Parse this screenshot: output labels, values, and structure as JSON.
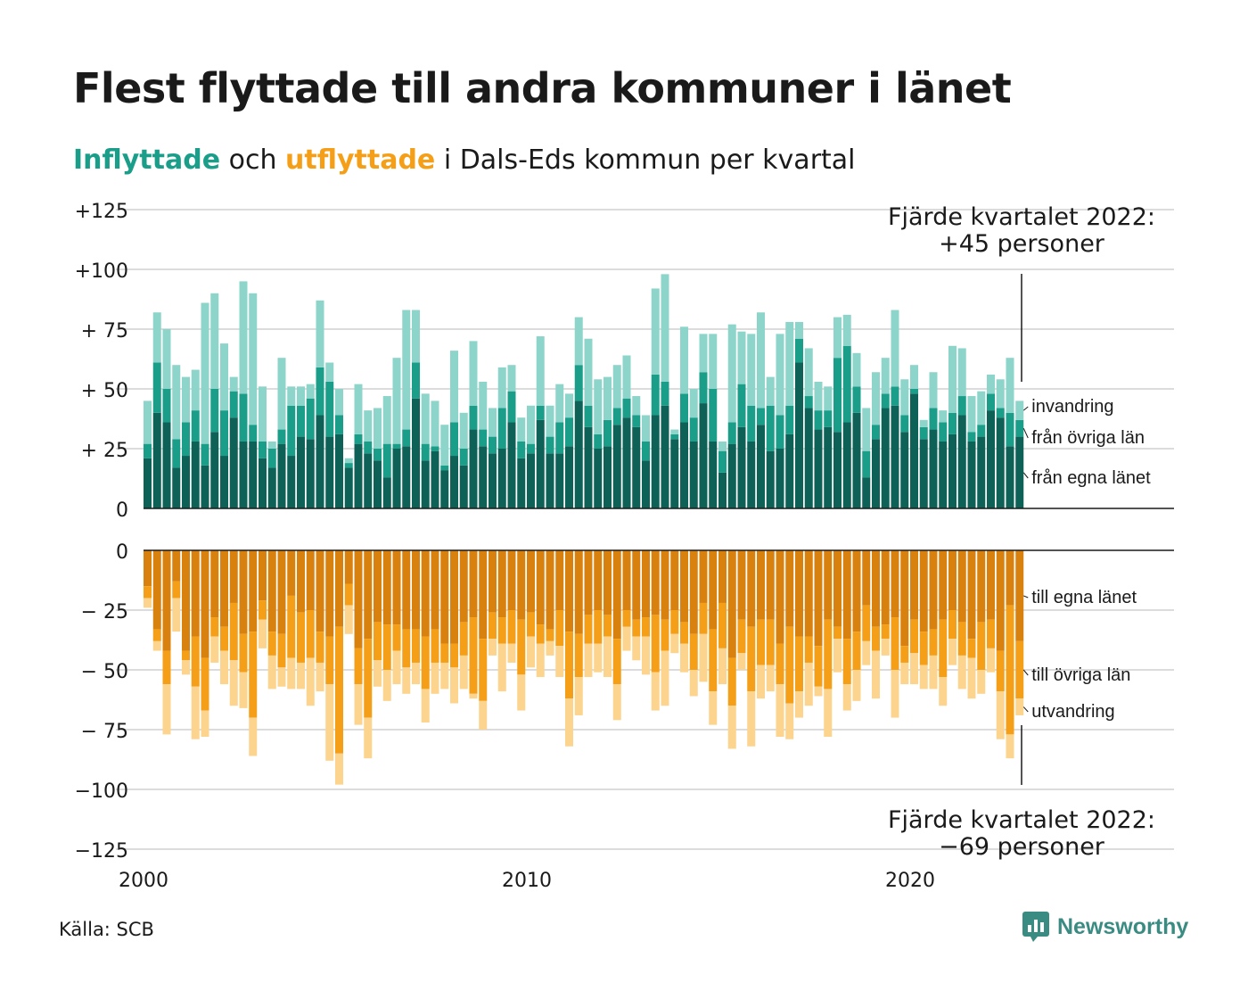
{
  "title": "Flest flyttade till andra kommuner i länet",
  "subtitle": {
    "in_word": "Inflyttade",
    "and_word": "och",
    "out_word": "utflyttade",
    "rest": "i Dals-Eds kommun per kvartal"
  },
  "colors": {
    "in_own": "#0d6156",
    "in_other": "#1a9e8a",
    "in_immigration": "#8dd5ca",
    "out_own": "#d9810e",
    "out_other": "#f49f17",
    "out_emigration": "#fcd48e",
    "grid": "#dcdcdc",
    "in_accent": "#1a9e8a",
    "out_accent": "#f49f17"
  },
  "annotations": {
    "top_line1": "Fjärde kvartalet 2022:",
    "top_line2": "+45 personer",
    "bottom_line1": "Fjärde kvartalet 2022:",
    "bottom_line2": "−69 personer"
  },
  "source": "Källa: SCB",
  "brand": {
    "name": "Newsworthy",
    "icon": "newsworthy-logo-icon"
  },
  "chart_data": {
    "type": "bar",
    "stacked": true,
    "x_start": "2000 Q1",
    "x_end": "2022 Q4",
    "x_ticks": [
      "2000",
      "2010",
      "2020"
    ],
    "grid": true,
    "panels": [
      {
        "name": "Inflyttade",
        "ylim": [
          0,
          125
        ],
        "y_ticks": [
          0,
          25,
          50,
          75,
          100,
          125
        ],
        "y_tick_labels": [
          "0",
          "+ 25",
          "+ 50",
          "+ 75",
          "+100",
          "+125"
        ],
        "series": [
          {
            "name": "från egna länet",
            "values": [
              21,
              40,
              36,
              17,
              22,
              28,
              18,
              32,
              22,
              38,
              28,
              28,
              21,
              17,
              27,
              22,
              30,
              29,
              39,
              30,
              31,
              17,
              27,
              23,
              20,
              13,
              25,
              26,
              46,
              20,
              24,
              16,
              22,
              18,
              33,
              26,
              23,
              25,
              36,
              21,
              23,
              37,
              23,
              23,
              26,
              45,
              34,
              25,
              26,
              35,
              38,
              34,
              20,
              39,
              43,
              29,
              36,
              28,
              44,
              28,
              15,
              27,
              34,
              28,
              35,
              24,
              25,
              31,
              61,
              42,
              33,
              34,
              32,
              36,
              40,
              13,
              29,
              42,
              43,
              32,
              48,
              29,
              33,
              28,
              31,
              39,
              28,
              30,
              41,
              38,
              26,
              30
            ]
          },
          {
            "name": "från övriga län",
            "values": [
              6,
              21,
              14,
              12,
              14,
              13,
              9,
              18,
              19,
              11,
              20,
              7,
              7,
              8,
              6,
              21,
              13,
              17,
              20,
              23,
              8,
              2,
              4,
              5,
              5,
              14,
              2,
              7,
              15,
              7,
              2,
              2,
              14,
              7,
              10,
              7,
              7,
              17,
              13,
              7,
              4,
              6,
              7,
              13,
              12,
              15,
              9,
              6,
              11,
              7,
              8,
              5,
              8,
              17,
              10,
              2,
              12,
              10,
              13,
              22,
              9,
              9,
              18,
              15,
              7,
              19,
              14,
              12,
              10,
              5,
              8,
              7,
              31,
              32,
              11,
              11,
              6,
              6,
              8,
              7,
              2,
              5,
              9,
              8,
              9,
              8,
              4,
              5,
              7,
              4,
              14,
              7
            ]
          },
          {
            "name": "invandring",
            "values": [
              18,
              21,
              25,
              31,
              19,
              17,
              59,
              40,
              28,
              6,
              47,
              55,
              23,
              3,
              30,
              8,
              8,
              6,
              28,
              8,
              11,
              2,
              21,
              13,
              17,
              20,
              36,
              50,
              22,
              21,
              19,
              17,
              30,
              15,
              27,
              20,
              12,
              17,
              11,
              10,
              16,
              29,
              13,
              16,
              10,
              20,
              28,
              23,
              18,
              18,
              18,
              8,
              11,
              36,
              45,
              2,
              28,
              12,
              16,
              23,
              4,
              41,
              22,
              30,
              40,
              12,
              34,
              35,
              7,
              20,
              12,
              10,
              17,
              13,
              14,
              18,
              22,
              15,
              32,
              15,
              10,
              3,
              15,
              5,
              28,
              20,
              15,
              14,
              8,
              12,
              23,
              8
            ]
          }
        ]
      },
      {
        "name": "Utflyttade",
        "ylim": [
          -125,
          0
        ],
        "y_ticks": [
          0,
          -25,
          -50,
          -75,
          -100,
          -125
        ],
        "y_tick_labels": [
          "0",
          "− 25",
          "− 50",
          "− 75",
          "−100",
          "−125"
        ],
        "series": [
          {
            "name": "till egna länet",
            "values": [
              -15,
              -33,
              -42,
              -13,
              -42,
              -36,
              -45,
              -28,
              -32,
              -22,
              -35,
              -34,
              -21,
              -34,
              -35,
              -19,
              -26,
              -25,
              -34,
              -36,
              -32,
              -14,
              -41,
              -37,
              -30,
              -31,
              -31,
              -33,
              -33,
              -36,
              -33,
              -39,
              -39,
              -30,
              -28,
              -37,
              -26,
              -28,
              -25,
              -29,
              -26,
              -31,
              -33,
              -25,
              -34,
              -35,
              -27,
              -25,
              -27,
              -37,
              -25,
              -29,
              -28,
              -27,
              -29,
              -25,
              -30,
              -35,
              -22,
              -33,
              -22,
              -45,
              -29,
              -32,
              -29,
              -29,
              -39,
              -32,
              -36,
              -36,
              -40,
              -29,
              -32,
              -37,
              -34,
              -23,
              -32,
              -31,
              -28,
              -40,
              -29,
              -34,
              -33,
              -29,
              -25,
              -30,
              -37,
              -30,
              -29,
              -42,
              -23,
              -38
            ]
          },
          {
            "name": "till övriga län",
            "values": [
              -5,
              -5,
              -14,
              -7,
              -4,
              -21,
              -22,
              -8,
              -10,
              -24,
              -16,
              -36,
              -8,
              -10,
              -14,
              -26,
              -21,
              -20,
              -13,
              -20,
              -53,
              -9,
              -15,
              -33,
              -16,
              -19,
              -11,
              -16,
              -14,
              -22,
              -14,
              -8,
              -10,
              -14,
              -32,
              -26,
              -11,
              -11,
              -14,
              -23,
              -10,
              -8,
              -5,
              -15,
              -28,
              -18,
              -12,
              -14,
              -9,
              -19,
              -7,
              -7,
              -8,
              -24,
              -13,
              -10,
              -9,
              -15,
              -13,
              -26,
              -19,
              -20,
              -14,
              -27,
              -19,
              -19,
              -17,
              -32,
              -23,
              -11,
              -17,
              -29,
              -5,
              -19,
              -16,
              -15,
              -10,
              -6,
              -22,
              -7,
              -14,
              -14,
              -11,
              -24,
              -12,
              -14,
              -8,
              -20,
              -12,
              -17,
              -54,
              -24
            ]
          },
          {
            "name": "utvandring",
            "values": [
              -4,
              -4,
              -21,
              -14,
              -6,
              -22,
              -11,
              -11,
              -14,
              -19,
              -15,
              -16,
              -12,
              -14,
              -8,
              -13,
              -11,
              -20,
              -12,
              -32,
              -13,
              -12,
              -17,
              -17,
              -11,
              -13,
              -14,
              -11,
              -9,
              -14,
              -13,
              -11,
              -15,
              -14,
              -2,
              -12,
              -7,
              -20,
              -8,
              -15,
              -13,
              -14,
              -6,
              -13,
              -20,
              -16,
              -14,
              -12,
              -17,
              -15,
              -10,
              -10,
              -16,
              -16,
              -23,
              -8,
              -12,
              -11,
              -20,
              -14,
              -15,
              -18,
              -7,
              -23,
              -14,
              -11,
              -22,
              -15,
              -11,
              -18,
              -4,
              -20,
              -14,
              -11,
              -13,
              -10,
              -20,
              -7,
              -20,
              -9,
              -13,
              -10,
              -14,
              -12,
              -11,
              -14,
              -17,
              -10,
              -10,
              -20,
              -10,
              -7
            ]
          }
        ]
      }
    ]
  }
}
